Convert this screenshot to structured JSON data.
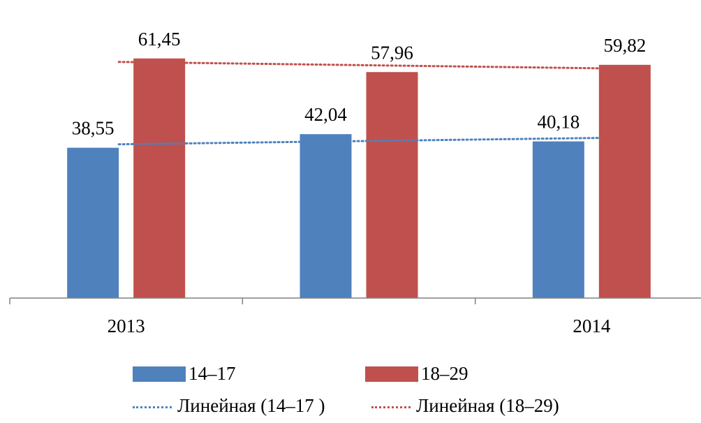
{
  "chart_data": {
    "type": "bar",
    "categories": [
      "2013",
      "",
      "2014"
    ],
    "series": [
      {
        "name": "14–17",
        "values": [
          38.55,
          42.04,
          40.18
        ],
        "color": "#4F81BD"
      },
      {
        "name": "18–29",
        "values": [
          61.45,
          57.96,
          59.82
        ],
        "color": "#C0504D"
      }
    ],
    "data_labels": {
      "14–17": [
        "38,55",
        "42,04",
        "40,18"
      ],
      "18–29": [
        "61,45",
        "57,96",
        "59,82"
      ]
    },
    "trendlines": [
      {
        "name": "Линейная (14–17 )",
        "series": "14–17",
        "type": "linear",
        "color": "#4F81BD",
        "style": "dotted"
      },
      {
        "name": "Линейная (18–29)",
        "series": "18–29",
        "type": "linear",
        "color": "#C0504D",
        "style": "dotted"
      }
    ],
    "ylim": [
      0,
      70
    ],
    "grid": false,
    "legend_position": "bottom"
  }
}
